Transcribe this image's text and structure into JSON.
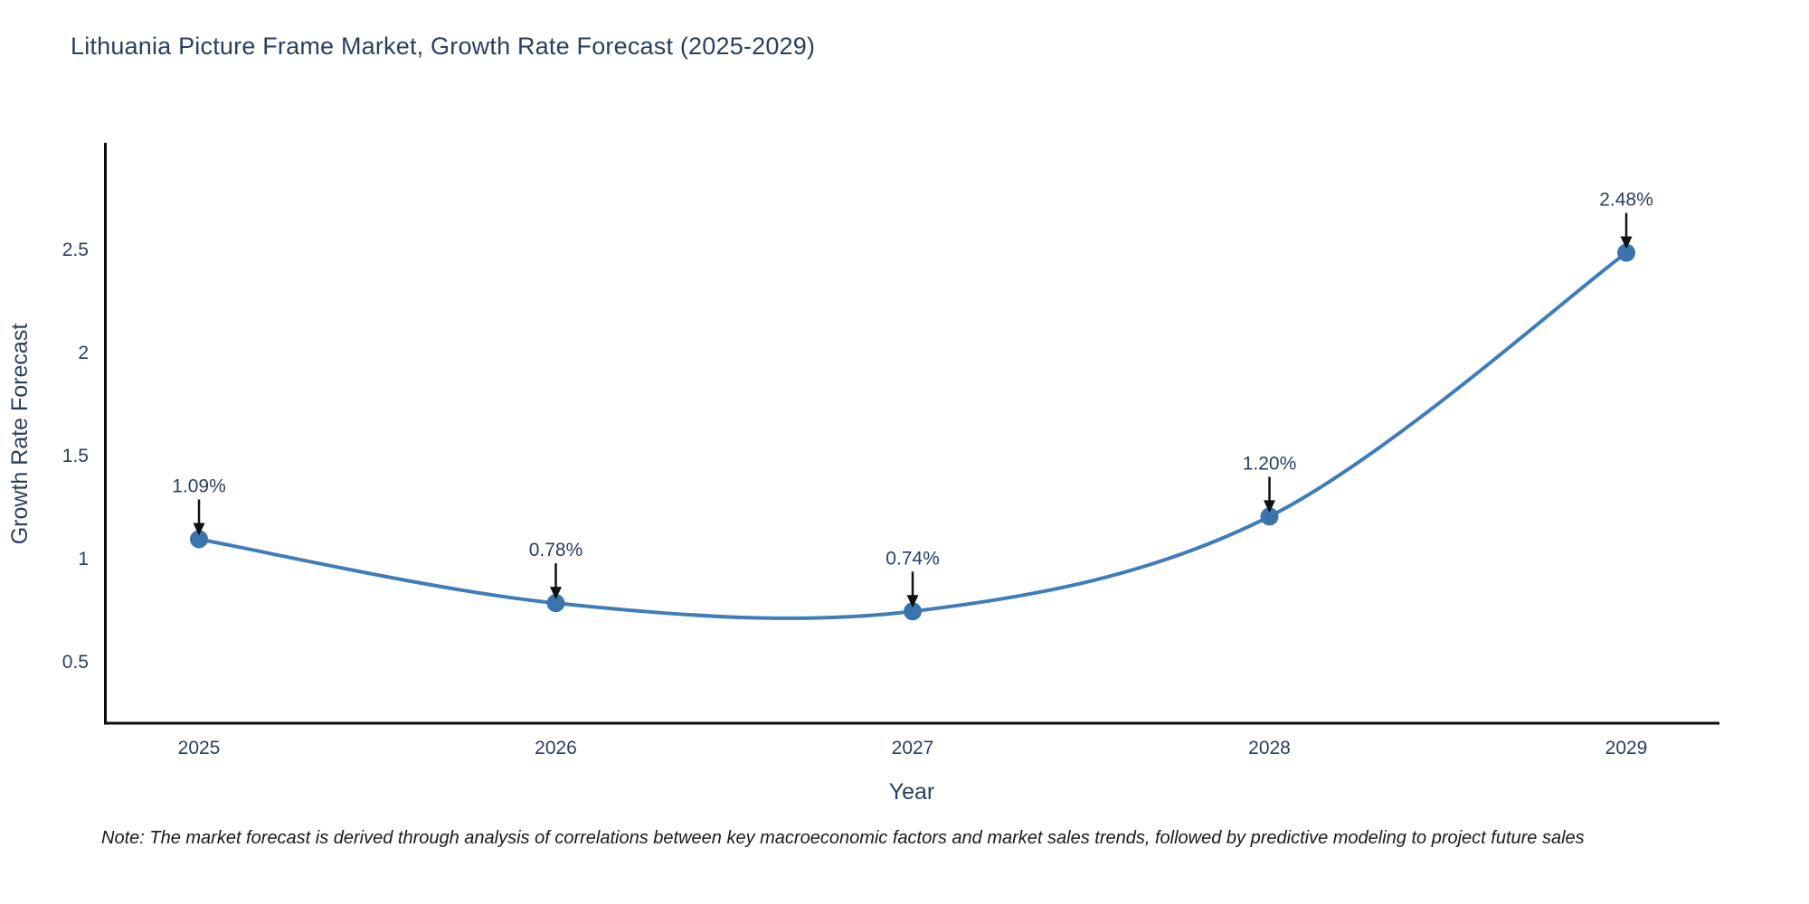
{
  "title": "Lithuania Picture Frame Market, Growth Rate Forecast (2025-2029)",
  "note": "Note: The market forecast is derived through analysis of correlations between key macroeconomic factors and market sales trends, followed by predictive modeling to project future sales",
  "chart_data": {
    "type": "line",
    "title": "Lithuania Picture Frame Market, Growth Rate Forecast (2025-2029)",
    "categories": [
      "2025",
      "2026",
      "2027",
      "2028",
      "2029"
    ],
    "series": [
      {
        "name": "Growth Rate Forecast",
        "values": [
          1.09,
          0.78,
          0.74,
          1.2,
          2.48
        ]
      }
    ],
    "point_labels": [
      "1.09%",
      "0.78%",
      "0.74%",
      "1.20%",
      "2.48%"
    ],
    "xlabel": "Year",
    "ylabel": "Growth Rate Forecast",
    "yticks": [
      0.5,
      1,
      1.5,
      2,
      2.5
    ],
    "ylim": [
      0.2,
      3.0
    ],
    "grid": false,
    "legend_position": "none",
    "line_shape": "spline",
    "line_color": "#3f7cb8",
    "marker_color": "#3a74ad",
    "axis_color": "#0d0d0d",
    "text_color": "#2a3f5f",
    "annotation_arrow_color": "#111111"
  }
}
